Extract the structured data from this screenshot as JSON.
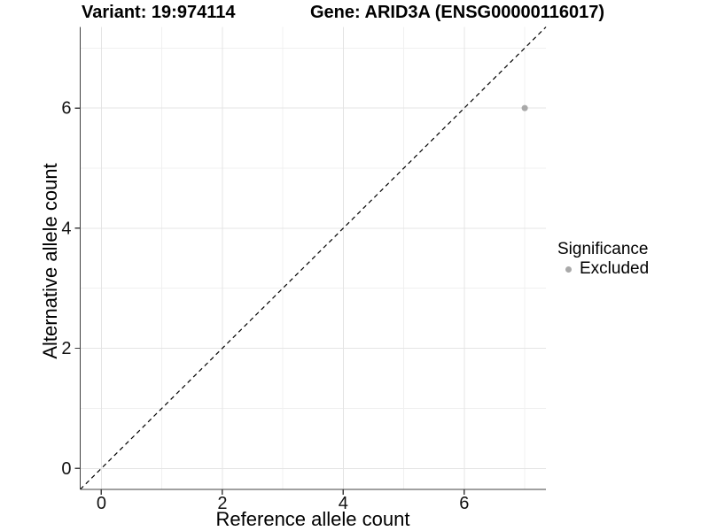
{
  "chart_data": {
    "type": "scatter",
    "titles": {
      "variant": "Variant: 19:974114",
      "gene": "Gene: ARID3A (ENSG00000116017)"
    },
    "xlabel": "Reference allele count",
    "ylabel": "Alternative allele count",
    "xlim": [
      -0.35,
      7.35
    ],
    "ylim": [
      -0.35,
      7.35
    ],
    "x_ticks": {
      "major": [
        0,
        2,
        4,
        6
      ],
      "labels": [
        "0",
        "2",
        "4",
        "6"
      ],
      "minor": [
        1,
        3,
        5,
        7
      ]
    },
    "y_ticks": {
      "major": [
        0,
        2,
        4,
        6
      ],
      "labels": [
        "0",
        "2",
        "4",
        "6"
      ],
      "minor": [
        1,
        3,
        5,
        7
      ]
    },
    "grid": {
      "major": true,
      "minor": true
    },
    "identity_line": {
      "style": "dashed",
      "x1": -0.35,
      "y1": -0.35,
      "x2": 7.35,
      "y2": 7.35,
      "color": "#000000"
    },
    "series": [
      {
        "name": "Excluded",
        "color": "#a9a9a9",
        "points": [
          {
            "x": 7,
            "y": 6
          }
        ]
      }
    ],
    "legend": {
      "title": "Significance",
      "position": "right",
      "items": [
        {
          "label": "Excluded",
          "color": "#a9a9a9",
          "marker": "circle"
        }
      ]
    },
    "colors": {
      "background": "#ffffff",
      "grid_major": "#e4e4e4",
      "grid_minor": "#f0f0f0",
      "axis_line": "#404040",
      "tick_label": "#111111",
      "text": "#000000"
    }
  }
}
